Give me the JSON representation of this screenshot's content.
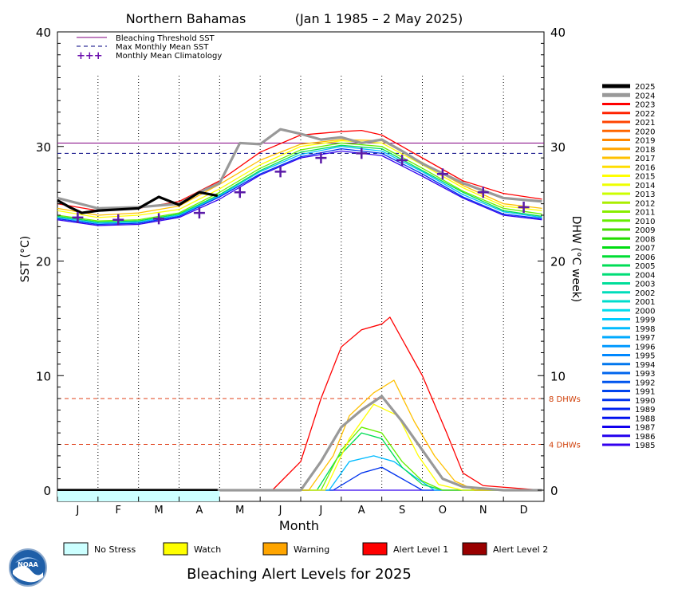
{
  "chart_data": {
    "type": "line",
    "title_region": "Northern Bahamas",
    "title_period": "(Jan 1 1985 – 2 May 2025)",
    "xlabel": "Month",
    "ylabel_left": "SST (°C)",
    "ylabel_right": "DHW (°C week)",
    "months": [
      "J",
      "F",
      "M",
      "A",
      "M",
      "J",
      "J",
      "A",
      "S",
      "O",
      "N",
      "D"
    ],
    "yticks": [
      "40",
      "30",
      "20",
      "10",
      "0"
    ],
    "yticks_right": [
      "40",
      "30",
      "20",
      "10",
      "0"
    ],
    "left_ylim": [
      0,
      40
    ],
    "grid": "dotted vertical lines between months",
    "legend_top": [
      {
        "label": "Bleaching Threshold SST",
        "style": "solid",
        "color": "#800080"
      },
      {
        "label": "Max Monthly Mean SST",
        "style": "dashed",
        "color": "#000080"
      },
      {
        "label": "Monthly Mean Climatology",
        "style": "plus",
        "color": "#6a0dad"
      }
    ],
    "bleaching_threshold_sst": 30.3,
    "max_monthly_mean_sst": 29.4,
    "climatology": [
      23.8,
      23.6,
      23.7,
      24.2,
      26.0,
      27.8,
      29.0,
      29.4,
      28.8,
      27.6,
      26.0,
      24.7
    ],
    "dhw_reference": [
      {
        "value": 8,
        "label": "8 DHWs"
      },
      {
        "value": 4,
        "label": "4 DHWs"
      }
    ],
    "years": [
      "2025",
      "2024",
      "2023",
      "2022",
      "2021",
      "2020",
      "2019",
      "2018",
      "2017",
      "2016",
      "2015",
      "2014",
      "2013",
      "2012",
      "2011",
      "2010",
      "2009",
      "2008",
      "2007",
      "2006",
      "2005",
      "2004",
      "2003",
      "2002",
      "2001",
      "2000",
      "1999",
      "1998",
      "1997",
      "1996",
      "1995",
      "1994",
      "1993",
      "1992",
      "1991",
      "1990",
      "1989",
      "1988",
      "1987",
      "1986",
      "1985"
    ],
    "year_colors": [
      "#000000",
      "#999999",
      "#ff0000",
      "#ff2200",
      "#ff4400",
      "#ff6600",
      "#ff8800",
      "#ffa500",
      "#ffc000",
      "#ffdd00",
      "#ffff00",
      "#eeff00",
      "#ccff00",
      "#aaee00",
      "#88ee00",
      "#66ee00",
      "#44dd00",
      "#22dd00",
      "#00dd11",
      "#00dd33",
      "#00dd55",
      "#00dd77",
      "#00dd99",
      "#00ddbb",
      "#00ddcc",
      "#00ddee",
      "#00ccff",
      "#00bbff",
      "#00aaff",
      "#0099ff",
      "#0088ff",
      "#0077ee",
      "#0066ee",
      "#0055ee",
      "#0044ee",
      "#0033ee",
      "#0022ee",
      "#0011ee",
      "#1100ee",
      "#2200ee",
      "#3300ee"
    ],
    "series": [
      {
        "name": "2025",
        "sst": [
          [
            0,
            25.3
          ],
          [
            0.3,
            24.7
          ],
          [
            0.6,
            24.2
          ],
          [
            1.0,
            24.4
          ],
          [
            1.5,
            24.5
          ],
          [
            2.0,
            24.6
          ],
          [
            2.5,
            25.6
          ],
          [
            3.0,
            24.9
          ],
          [
            3.5,
            26.0
          ],
          [
            3.95,
            25.7
          ]
        ],
        "dhw": [
          [
            0,
            0
          ],
          [
            3.95,
            0
          ]
        ]
      },
      {
        "name": "2024",
        "sst": [
          [
            0,
            25.5
          ],
          [
            1,
            24.6
          ],
          [
            2,
            24.7
          ],
          [
            3,
            25.0
          ],
          [
            3.5,
            26.0
          ],
          [
            4,
            26.8
          ],
          [
            4.5,
            30.3
          ],
          [
            5,
            30.2
          ],
          [
            5.5,
            31.5
          ],
          [
            6,
            31.1
          ],
          [
            6.5,
            30.6
          ],
          [
            7,
            30.8
          ],
          [
            7.5,
            30.3
          ],
          [
            8,
            30.6
          ],
          [
            8.5,
            29.6
          ],
          [
            9,
            28.5
          ],
          [
            10,
            26.8
          ],
          [
            11,
            25.5
          ],
          [
            11.95,
            25.2
          ]
        ],
        "dhw": [
          [
            0,
            0
          ],
          [
            6,
            0
          ],
          [
            6.5,
            2.5
          ],
          [
            7,
            5.5
          ],
          [
            7.5,
            7.0
          ],
          [
            8,
            8.2
          ],
          [
            8.5,
            6.0
          ],
          [
            9,
            3.5
          ],
          [
            9.5,
            1.0
          ],
          [
            10,
            0.3
          ],
          [
            11,
            0
          ],
          [
            11.95,
            0
          ]
        ]
      },
      {
        "name": "2023",
        "sst": [
          [
            0,
            25.0
          ],
          [
            1,
            24.4
          ],
          [
            2,
            24.6
          ],
          [
            3,
            25.2
          ],
          [
            4,
            27.0
          ],
          [
            5,
            29.5
          ],
          [
            6,
            31.0
          ],
          [
            7,
            31.3
          ],
          [
            7.5,
            31.4
          ],
          [
            8,
            31.0
          ],
          [
            9,
            29.0
          ],
          [
            10,
            27.0
          ],
          [
            11,
            25.9
          ],
          [
            11.95,
            25.4
          ]
        ],
        "dhw": [
          [
            0,
            0
          ],
          [
            5.3,
            0
          ],
          [
            6,
            2.5
          ],
          [
            6.5,
            8.0
          ],
          [
            7,
            12.5
          ],
          [
            7.5,
            14.0
          ],
          [
            8,
            14.5
          ],
          [
            8.2,
            15.1
          ],
          [
            9,
            10.0
          ],
          [
            9.6,
            5.0
          ],
          [
            10,
            1.5
          ],
          [
            10.5,
            0.4
          ],
          [
            11.95,
            0
          ]
        ]
      },
      {
        "name": "2017",
        "sst": [
          [
            0,
            24.6
          ],
          [
            1,
            24.0
          ],
          [
            2,
            24.2
          ],
          [
            3,
            24.8
          ],
          [
            4,
            26.7
          ],
          [
            5,
            28.8
          ],
          [
            6,
            30.2
          ],
          [
            7,
            30.6
          ],
          [
            8,
            30.5
          ],
          [
            9,
            28.6
          ],
          [
            10,
            26.6
          ],
          [
            11,
            25.0
          ],
          [
            11.95,
            24.6
          ]
        ],
        "dhw": [
          [
            0,
            0
          ],
          [
            6.2,
            0
          ],
          [
            6.8,
            3.0
          ],
          [
            7.2,
            6.5
          ],
          [
            7.8,
            8.5
          ],
          [
            8.3,
            9.6
          ],
          [
            8.8,
            6.0
          ],
          [
            9.3,
            3.0
          ],
          [
            9.8,
            0.8
          ],
          [
            10.3,
            0
          ],
          [
            11.95,
            0
          ]
        ]
      },
      {
        "name": "2015",
        "sst": [
          [
            0,
            24.4
          ],
          [
            1,
            23.8
          ],
          [
            2,
            24.0
          ],
          [
            3,
            24.5
          ],
          [
            4,
            26.3
          ],
          [
            5,
            28.4
          ],
          [
            6,
            30.0
          ],
          [
            7,
            30.5
          ],
          [
            8,
            30.3
          ],
          [
            9,
            28.4
          ],
          [
            10,
            26.4
          ],
          [
            11,
            24.8
          ],
          [
            11.95,
            24.4
          ]
        ],
        "dhw": [
          [
            0,
            0
          ],
          [
            6.6,
            0
          ],
          [
            7.2,
            4.5
          ],
          [
            7.8,
            7.5
          ],
          [
            8.4,
            6.5
          ],
          [
            8.9,
            3.0
          ],
          [
            9.4,
            0.5
          ],
          [
            10,
            0
          ],
          [
            11.95,
            0
          ]
        ]
      },
      {
        "name": "2010",
        "sst": [
          [
            0,
            24.0
          ],
          [
            1,
            23.5
          ],
          [
            2,
            23.6
          ],
          [
            3,
            24.2
          ],
          [
            4,
            26.0
          ],
          [
            5,
            28.1
          ],
          [
            6,
            29.7
          ],
          [
            7,
            30.3
          ],
          [
            8,
            30.0
          ],
          [
            9,
            28.1
          ],
          [
            10,
            26.1
          ],
          [
            11,
            24.6
          ],
          [
            11.95,
            24.1
          ]
        ],
        "dhw": [
          [
            0,
            0
          ],
          [
            6.5,
            0
          ],
          [
            7.0,
            3.5
          ],
          [
            7.5,
            5.5
          ],
          [
            8.0,
            5.0
          ],
          [
            8.5,
            2.5
          ],
          [
            9.0,
            0.8
          ],
          [
            9.5,
            0
          ],
          [
            11.95,
            0
          ]
        ]
      },
      {
        "name": "2005",
        "sst": [
          [
            0,
            23.9
          ],
          [
            1,
            23.4
          ],
          [
            2,
            23.5
          ],
          [
            3,
            24.1
          ],
          [
            4,
            25.8
          ],
          [
            5,
            27.9
          ],
          [
            6,
            29.5
          ],
          [
            7,
            30.1
          ],
          [
            8,
            29.8
          ],
          [
            9,
            27.9
          ],
          [
            10,
            26.0
          ],
          [
            11,
            24.4
          ],
          [
            11.95,
            23.9
          ]
        ],
        "dhw": [
          [
            0,
            0
          ],
          [
            6.4,
            0
          ],
          [
            6.9,
            2.8
          ],
          [
            7.5,
            5.0
          ],
          [
            8.0,
            4.5
          ],
          [
            8.5,
            2.0
          ],
          [
            9.0,
            0.5
          ],
          [
            9.5,
            0
          ],
          [
            11.95,
            0
          ]
        ]
      },
      {
        "name": "1998",
        "sst": [
          [
            0,
            23.8
          ],
          [
            1,
            23.3
          ],
          [
            2,
            23.4
          ],
          [
            3,
            24.0
          ],
          [
            4,
            25.7
          ],
          [
            5,
            27.8
          ],
          [
            6,
            29.3
          ],
          [
            7,
            30.0
          ],
          [
            8,
            29.6
          ],
          [
            9,
            27.8
          ],
          [
            10,
            25.8
          ],
          [
            11,
            24.3
          ],
          [
            11.95,
            23.8
          ]
        ],
        "dhw": [
          [
            0,
            0
          ],
          [
            6.7,
            0
          ],
          [
            7.2,
            2.5
          ],
          [
            7.8,
            3.0
          ],
          [
            8.3,
            2.5
          ],
          [
            8.8,
            1.2
          ],
          [
            9.3,
            0
          ],
          [
            11.95,
            0
          ]
        ]
      },
      {
        "name": "1990",
        "sst": [
          [
            0,
            23.7
          ],
          [
            1,
            23.2
          ],
          [
            2,
            23.3
          ],
          [
            3,
            23.9
          ],
          [
            4,
            25.6
          ],
          [
            5,
            27.6
          ],
          [
            6,
            29.1
          ],
          [
            7,
            29.8
          ],
          [
            8,
            29.4
          ],
          [
            9,
            27.6
          ],
          [
            10,
            25.6
          ],
          [
            11,
            24.1
          ],
          [
            11.95,
            23.7
          ]
        ],
        "dhw": [
          [
            0,
            0
          ],
          [
            6.8,
            0
          ],
          [
            7.5,
            1.5
          ],
          [
            8.0,
            2.0
          ],
          [
            8.5,
            1.0
          ],
          [
            9.0,
            0
          ],
          [
            11.95,
            0
          ]
        ]
      },
      {
        "name": "1985",
        "sst": [
          [
            0,
            23.6
          ],
          [
            1,
            23.1
          ],
          [
            2,
            23.2
          ],
          [
            3,
            23.8
          ],
          [
            4,
            25.4
          ],
          [
            5,
            27.5
          ],
          [
            6,
            29.0
          ],
          [
            7,
            29.6
          ],
          [
            8,
            29.2
          ],
          [
            9,
            27.4
          ],
          [
            10,
            25.5
          ],
          [
            11,
            24.0
          ],
          [
            11.95,
            23.6
          ]
        ],
        "dhw": [
          [
            0,
            0
          ],
          [
            11.95,
            0
          ]
        ]
      }
    ]
  },
  "alert_legend": {
    "title": "Bleaching Alert Levels for 2025",
    "items": [
      {
        "label": "No Stress",
        "color": "#ccffff"
      },
      {
        "label": "Watch",
        "color": "#ffff00"
      },
      {
        "label": "Warning",
        "color": "#ffa500"
      },
      {
        "label": "Alert Level 1",
        "color": "#ff0000"
      },
      {
        "label": "Alert Level 2",
        "color": "#990000"
      }
    ],
    "current_period": {
      "level": "No Stress",
      "from_month": 0,
      "to_month": 4.0
    }
  },
  "logo": {
    "text": "NOAA",
    "icon": "noaa-logo-icon"
  }
}
